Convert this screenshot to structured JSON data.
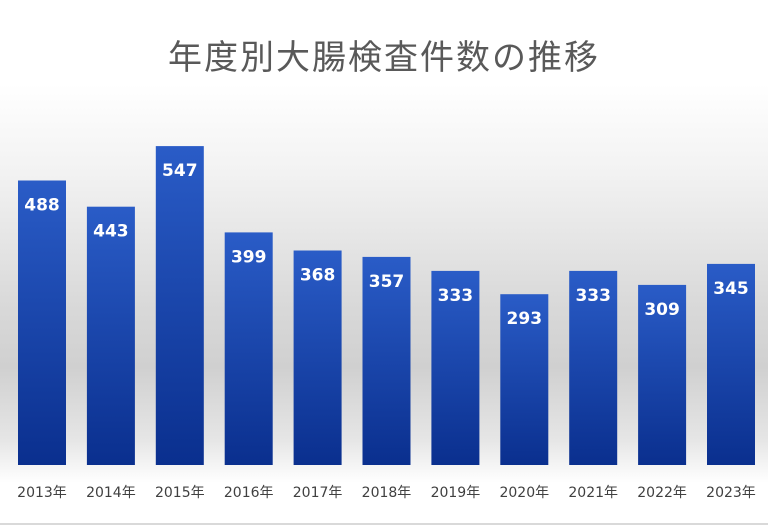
{
  "chart_data": {
    "type": "bar",
    "title": "年度別大腸検査件数の推移",
    "xlabel": "",
    "ylabel": "",
    "categories": [
      "2013年",
      "2014年",
      "2015年",
      "2016年",
      "2017年",
      "2018年",
      "2019年",
      "2020年",
      "2021年",
      "2022年",
      "2023年"
    ],
    "values": [
      488,
      443,
      547,
      399,
      368,
      357,
      333,
      293,
      333,
      309,
      345
    ],
    "ylim": [
      0,
      600
    ],
    "grid": false,
    "legend": "none",
    "bar_color_top": "#2a5cc7",
    "bar_color_bottom": "#0a2f8e",
    "label_color": "#ffffff"
  }
}
